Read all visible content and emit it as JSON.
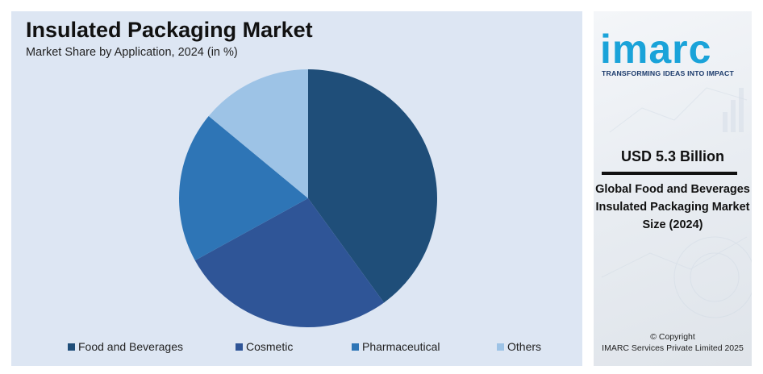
{
  "chart": {
    "title": "Insulated Packaging Market",
    "subtitle": "Market Share by Application, 2024 (in %)"
  },
  "chart_data": {
    "type": "pie",
    "title": "Insulated Packaging Market",
    "subtitle": "Market Share by Application, 2024 (in %)",
    "categories": [
      "Food and Beverages",
      "Cosmetic",
      "Pharmaceutical",
      "Others"
    ],
    "values": [
      40,
      27,
      19,
      14
    ],
    "colors": [
      "#1f4e79",
      "#2f5597",
      "#2e75b6",
      "#9dc3e6"
    ],
    "start": "12 o'clock",
    "direction": "clockwise",
    "legend": "bottom"
  },
  "side_panel": {
    "logo": "imarc",
    "tagline": "TRANSFORMING IDEAS INTO IMPACT",
    "stat_value": "USD 5.3 Billion",
    "stat_description": "Global Food and Beverages Insulated Packaging Market Size (2024)",
    "copyright_line1": "© Copyright",
    "copyright_line2": "IMARC Services Private Limited 2025",
    "logo_color": "#1aa3d9",
    "tagline_color": "#1b3a6b"
  }
}
